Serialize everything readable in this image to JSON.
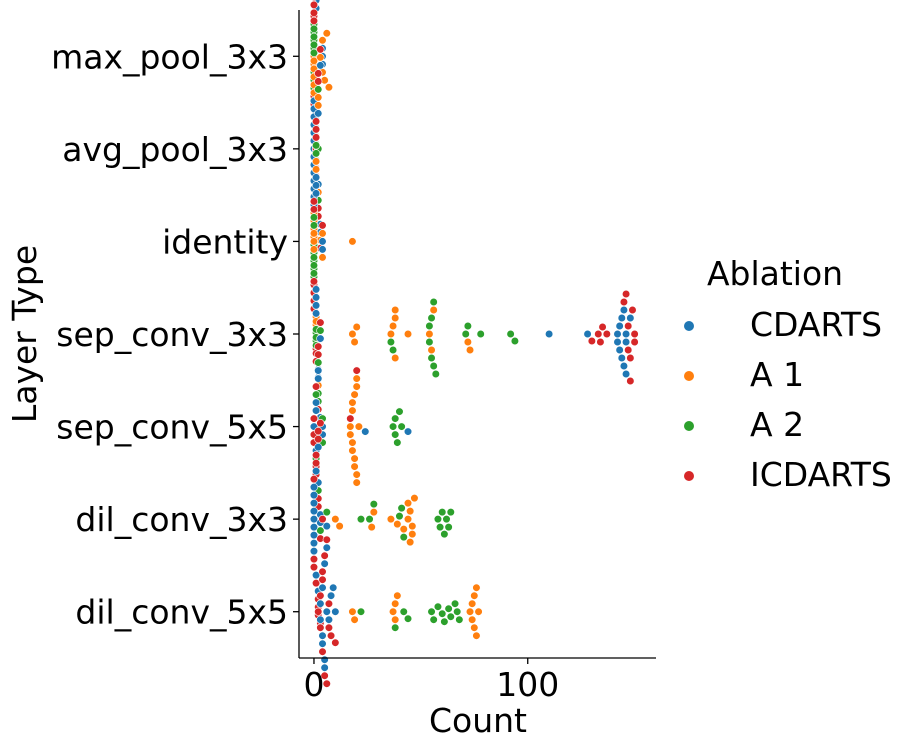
{
  "chart_data": {
    "type": "scatter",
    "subtype": "swarm",
    "xlabel": "Count",
    "ylabel": "Layer Type",
    "xlim": [
      -7,
      160
    ],
    "xticks": [
      0,
      100
    ],
    "categories": [
      "max_pool_3x3",
      "avg_pool_3x3",
      "identity",
      "sep_conv_3x3",
      "sep_conv_5x5",
      "dil_conv_3x3",
      "dil_conv_5x5"
    ],
    "grid": false,
    "legend": {
      "title": "Ablation",
      "position": "right"
    },
    "series": [
      {
        "name": "CDARTS",
        "color": "#1f77b4",
        "values": [
          [
            1,
            1,
            1,
            1,
            1,
            1,
            2,
            2,
            3,
            3,
            3,
            4,
            4,
            4
          ],
          [
            0,
            0,
            0,
            0,
            0,
            0,
            0,
            0,
            0,
            0,
            0,
            0,
            0,
            0
          ],
          [
            1,
            1,
            1,
            1,
            1,
            1,
            1,
            2,
            2,
            2,
            3,
            3,
            4,
            4
          ],
          [
            110,
            128,
            142,
            142,
            143,
            143,
            144,
            144,
            145,
            145,
            146,
            146,
            146,
            148
          ],
          [
            0,
            1,
            1,
            1,
            2,
            2,
            2,
            3,
            3,
            3,
            4,
            4,
            24,
            44
          ],
          [
            0,
            0,
            0,
            0,
            0,
            0,
            0,
            0,
            0,
            1,
            1,
            2,
            2,
            6
          ],
          [
            3,
            3,
            4,
            4,
            4,
            5,
            5,
            5,
            6,
            6,
            7,
            8,
            9,
            10
          ]
        ]
      },
      {
        "name": "A 1",
        "color": "#ff7f0e",
        "values": [
          [
            0,
            0,
            1,
            1,
            1,
            2,
            2,
            3,
            3,
            4,
            4,
            5,
            6,
            7
          ],
          [
            0,
            0,
            0,
            0,
            0,
            0,
            0,
            0,
            0,
            1,
            1,
            1,
            1,
            2
          ],
          [
            0,
            0,
            0,
            1,
            1,
            1,
            2,
            2,
            2,
            3,
            3,
            4,
            4,
            18
          ],
          [
            18,
            19,
            20,
            36,
            37,
            38,
            38,
            38,
            44,
            54,
            55,
            56,
            72,
            73
          ],
          [
            17,
            17,
            18,
            18,
            18,
            18,
            19,
            19,
            19,
            20,
            20,
            20,
            20,
            21
          ],
          [
            10,
            12,
            27,
            28,
            36,
            39,
            42,
            44,
            44,
            45,
            45,
            46,
            46,
            47
          ],
          [
            18,
            19,
            37,
            38,
            38,
            39,
            73,
            74,
            74,
            75,
            75,
            76,
            76,
            77
          ]
        ]
      },
      {
        "name": "A 2",
        "color": "#2ca02c",
        "values": [
          [
            0,
            0,
            0,
            0,
            0,
            0,
            0,
            1,
            1,
            1,
            1,
            1,
            1,
            2
          ],
          [
            0,
            0,
            0,
            0,
            0,
            0,
            0,
            0,
            0,
            1,
            1,
            1,
            1,
            2
          ],
          [
            0,
            0,
            0,
            0,
            0,
            1,
            1,
            1,
            1,
            1,
            2,
            2,
            2,
            3
          ],
          [
            36,
            37,
            54,
            54,
            55,
            55,
            56,
            56,
            57,
            71,
            72,
            78,
            92,
            94
          ],
          [
            1,
            1,
            2,
            2,
            3,
            3,
            4,
            4,
            37,
            38,
            38,
            39,
            40,
            41
          ],
          [
            6,
            22,
            26,
            28,
            40,
            41,
            42,
            58,
            59,
            60,
            61,
            62,
            63,
            64
          ],
          [
            22,
            38,
            42,
            44,
            55,
            56,
            58,
            60,
            61,
            63,
            64,
            66,
            67,
            68
          ]
        ]
      },
      {
        "name": "ICDARTS",
        "color": "#d62728",
        "values": [
          [
            0,
            0,
            0,
            1,
            1,
            1,
            1,
            2,
            2,
            2,
            2,
            2,
            3,
            3
          ],
          [
            0,
            0,
            0,
            0,
            0,
            0,
            0,
            0,
            0,
            1,
            1,
            1,
            1,
            1
          ],
          [
            0,
            0,
            0,
            1,
            1,
            1,
            1,
            1,
            2,
            2,
            2,
            3,
            3,
            4
          ],
          [
            130,
            133,
            134,
            135,
            137,
            145,
            146,
            147,
            147,
            148,
            148,
            149,
            150,
            150
          ],
          [
            0,
            0,
            0,
            1,
            1,
            1,
            2,
            2,
            2,
            2,
            3,
            3,
            17,
            20
          ],
          [
            0,
            0,
            0,
            1,
            1,
            1,
            2,
            2,
            2,
            2,
            2,
            3,
            3,
            4
          ],
          [
            2,
            3,
            3,
            4,
            4,
            4,
            5,
            5,
            6,
            6,
            7,
            7,
            8,
            10
          ]
        ]
      }
    ]
  }
}
